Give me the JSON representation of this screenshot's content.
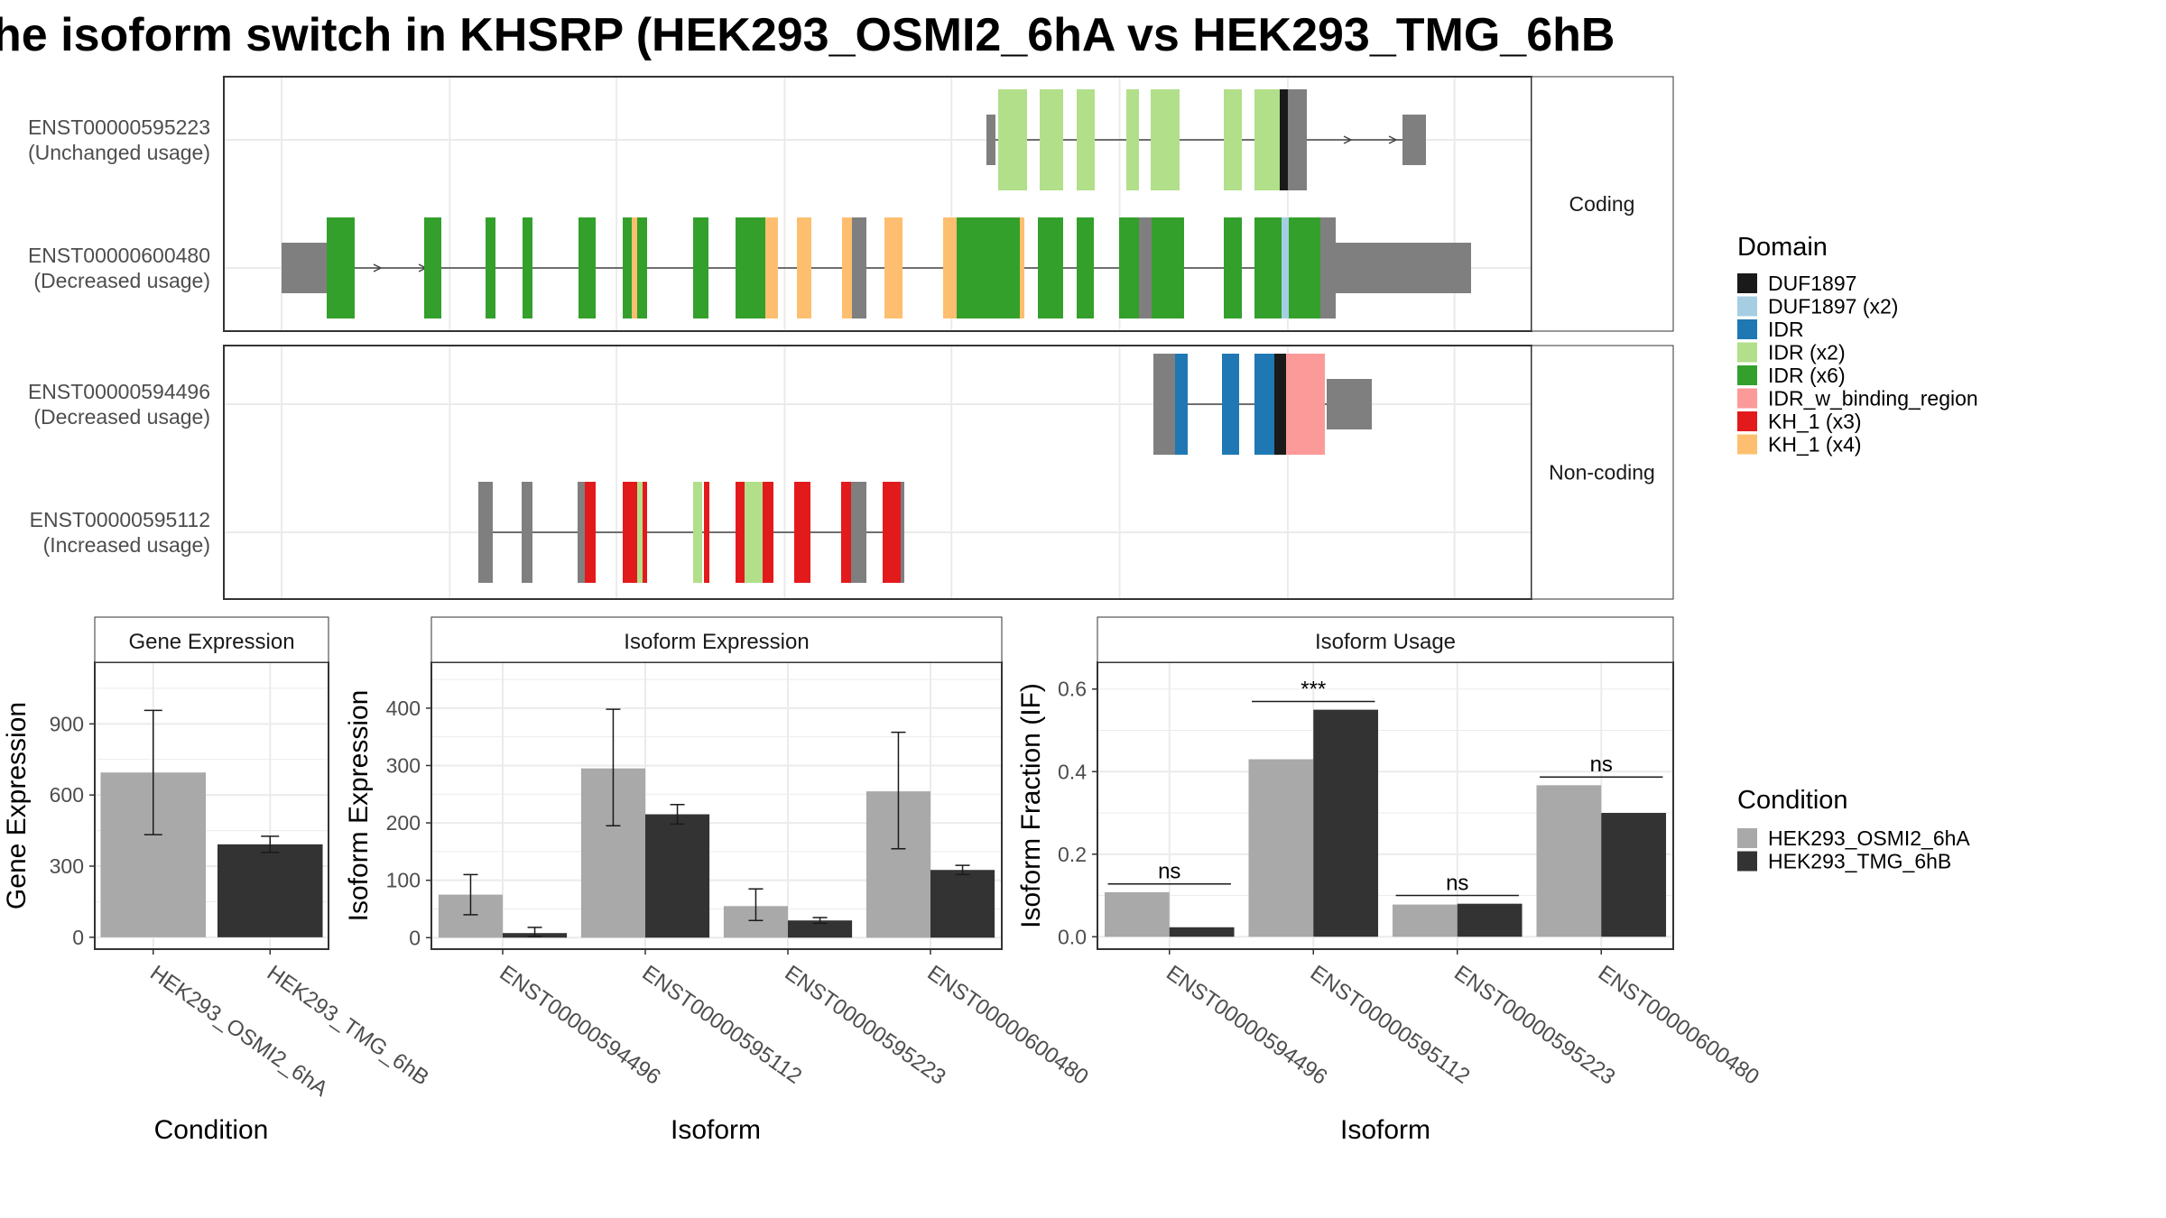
{
  "title": "he isoform switch in KHSRP (HEK293_OSMI2_6hA vs HEK293_TMG_6hB",
  "colors": {
    "intron": "#444444",
    "noncoding_exon": "#7f7f7f",
    "cond_a": "#a9a9a9",
    "cond_b": "#333333",
    "DUF1897": "#1a1a1a",
    "DUF1897 (x2)": "#a6cee3",
    "IDR": "#1f78b4",
    "IDR (x2)": "#b2df8a",
    "IDR (x6)": "#33a02c",
    "IDR_w_binding_region": "#fb9a99",
    "KH_1 (x3)": "#e31a1c",
    "KH_1 (x4)": "#fdbf6f"
  },
  "structure": {
    "facets": [
      {
        "label": "Coding",
        "isoforms": [
          0,
          1
        ]
      },
      {
        "label": "Non-coding",
        "isoforms": [
          2,
          3
        ]
      }
    ],
    "isoforms": [
      {
        "id": "ENST00000595223",
        "status": "(Unchanged usage)",
        "intron": [
          0.48,
          0.72
        ],
        "bodies": [
          [
            0.48,
            0.645
          ]
        ],
        "utr": [
          [
            0.642,
            0.655
          ],
          [
            0.7,
            0.72
          ]
        ],
        "arrows": [
          0.67,
          0.69
        ],
        "domains": [
          [
            "IDR (x2)",
            0.651,
            0.663
          ],
          [
            "IDR (x2)",
            0.676,
            0.686
          ],
          [
            "IDR (x2)",
            0.688,
            0.698
          ],
          [
            "IDR (x2)",
            0.703,
            0.713
          ],
          [
            "IDR (x2)",
            0.715,
            0.727
          ],
          [
            "IDR (x2)",
            0.733,
            0.745
          ],
          [
            "IDR (x2)",
            0.748,
            0.76
          ],
          [
            "DUF1897",
            0.757,
            0.76
          ]
        ]
      },
      {
        "id": "ENST00000600480",
        "status": "(Decreased usage)",
        "intron": [
          0.0,
          0.765
        ],
        "bodies": [],
        "utr": [
          [
            0.0,
            0.035
          ],
          [
            0.662,
            0.765
          ]
        ],
        "arrows": [
          0.1,
          0.12
        ],
        "domains": []
      },
      {
        "id": "ENST00000594496",
        "status": "(Decreased usage)",
        "intron": [
          0.59,
          0.67
        ],
        "bodies": [],
        "utr": [
          [
            0.674,
            0.695
          ]
        ],
        "arrows": [],
        "domains": []
      },
      {
        "id": "ENST00000595112",
        "status": "(Increased usage)",
        "intron": [
          0.15,
          0.43
        ],
        "bodies": [],
        "utr": [],
        "arrows": [],
        "domains": []
      }
    ]
  },
  "legend_domain": {
    "title": "Domain",
    "items": [
      "DUF1897",
      "DUF1897 (x2)",
      "IDR",
      "IDR (x2)",
      "IDR (x6)",
      "IDR_w_binding_region",
      "KH_1 (x3)",
      "KH_1 (x4)"
    ]
  },
  "legend_condition": {
    "title": "Condition",
    "items": [
      "HEK293_OSMI2_6hA",
      "HEK293_TMG_6hB"
    ]
  },
  "chart_data": [
    {
      "type": "bar",
      "title": "Gene Expression",
      "xlabel": "Condition",
      "ylabel": "Gene Expression",
      "categories": [
        "HEK293_OSMI2_6hA",
        "HEK293_TMG_6hB"
      ],
      "values": [
        695,
        392
      ],
      "error_low": [
        433,
        358
      ],
      "error_high": [
        957,
        426
      ],
      "ylim": [
        -50,
        1160
      ],
      "yticks": [
        0,
        300,
        600,
        900
      ]
    },
    {
      "type": "bar",
      "title": "Isoform Expression",
      "xlabel": "Isoform",
      "ylabel": "Isoform Expression",
      "categories": [
        "ENST00000594496",
        "ENST00000595112",
        "ENST00000595223",
        "ENST00000600480"
      ],
      "series": [
        {
          "name": "HEK293_OSMI2_6hA",
          "values": [
            75,
            295,
            55,
            255
          ],
          "error_low": [
            40,
            195,
            30,
            155
          ],
          "error_high": [
            110,
            398,
            85,
            358
          ]
        },
        {
          "name": "HEK293_TMG_6hB",
          "values": [
            8,
            215,
            30,
            118
          ],
          "error_low": [
            2,
            198,
            25,
            110
          ],
          "error_high": [
            18,
            232,
            35,
            126
          ]
        }
      ],
      "ylim": [
        -20,
        480
      ],
      "yticks": [
        0,
        100,
        200,
        300,
        400
      ]
    },
    {
      "type": "bar",
      "title": "Isoform Usage",
      "xlabel": "Isoform",
      "ylabel": "Isoform Fraction (IF)",
      "categories": [
        "ENST00000594496",
        "ENST00000595112",
        "ENST00000595223",
        "ENST00000600480"
      ],
      "series": [
        {
          "name": "HEK293_OSMI2_6hA",
          "values": [
            0.108,
            0.43,
            0.078,
            0.367
          ]
        },
        {
          "name": "HEK293_TMG_6hB",
          "values": [
            0.023,
            0.55,
            0.08,
            0.3
          ]
        }
      ],
      "significance": [
        "ns",
        "***",
        "ns",
        "ns"
      ],
      "ylim": [
        -0.03,
        0.665
      ],
      "yticks": [
        "0.0",
        "0.2",
        "0.4",
        "0.6"
      ]
    }
  ]
}
